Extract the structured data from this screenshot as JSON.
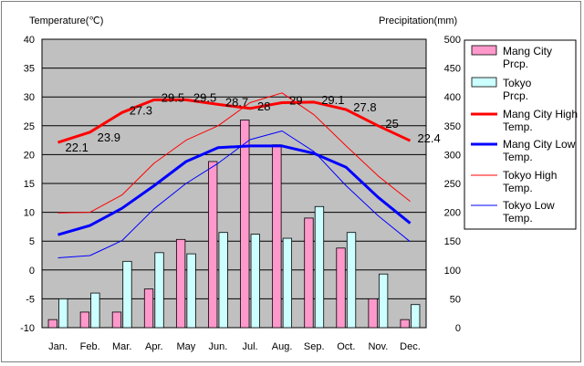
{
  "chart_data": {
    "type": "bar+line",
    "title": "",
    "ylabel_left": "Temperature(℃)",
    "ylabel_right": "Precipitation(mm)",
    "ylim_left": [
      -10,
      40
    ],
    "ylim_right": [
      0,
      500
    ],
    "yticks_left": [
      "40",
      "35",
      "30",
      "25",
      "20",
      "15",
      "10",
      "5",
      "0",
      "-5",
      "-10"
    ],
    "yticks_right": [
      "500",
      "450",
      "400",
      "350",
      "300",
      "250",
      "200",
      "150",
      "100",
      "50",
      "0"
    ],
    "categories": [
      "Jan.",
      "Feb.",
      "Mar.",
      "Apr.",
      "May",
      "Jun.",
      "Jul.",
      "Aug.",
      "Sep.",
      "Oct.",
      "Nov.",
      "Dec."
    ],
    "bar_series": [
      {
        "name": "Mang City Prcp.",
        "color": "#ff99cc",
        "axis": "right",
        "values": [
          14,
          27,
          27,
          67,
          153,
          288,
          360,
          317,
          190,
          138,
          50,
          14
        ]
      },
      {
        "name": "Tokyo Prcp.",
        "color": "#ccffff",
        "axis": "right",
        "values": [
          50,
          60,
          115,
          130,
          128,
          165,
          162,
          155,
          210,
          165,
          93,
          40
        ]
      }
    ],
    "line_series": [
      {
        "name": "Mang City High Temp.",
        "color": "#ff0000",
        "width": 3,
        "labeled": true,
        "values": [
          22.1,
          23.9,
          27.3,
          29.5,
          29.5,
          28.7,
          28,
          29,
          29.1,
          27.8,
          25,
          22.4
        ],
        "labels": [
          "22.1",
          "23.9",
          "27.3",
          "29.5",
          "29.5",
          "28.7",
          "28",
          "29",
          "29.1",
          "27.8",
          "25",
          "22.4"
        ]
      },
      {
        "name": "Mang City Low Temp.",
        "color": "#0000ff",
        "width": 3,
        "labeled": false,
        "values": [
          6.1,
          7.7,
          10.7,
          14.6,
          18.8,
          21.2,
          21.5,
          21.5,
          20.2,
          17.8,
          12.6,
          8.1
        ]
      },
      {
        "name": "Tokyo High Temp.",
        "color": "#ff0000",
        "width": 1,
        "labeled": false,
        "values": [
          9.9,
          10.0,
          13.0,
          18.5,
          22.5,
          25.0,
          29.0,
          30.7,
          26.9,
          21.5,
          16.3,
          11.9
        ]
      },
      {
        "name": "Tokyo Low Temp.",
        "color": "#0000ff",
        "width": 1,
        "labeled": false,
        "values": [
          2.1,
          2.5,
          5.1,
          10.6,
          15.0,
          18.5,
          22.6,
          24.1,
          20.5,
          14.6,
          9.4,
          4.9
        ]
      }
    ],
    "legend": [
      {
        "label": "Mang City Prcp.",
        "kind": "bar",
        "color": "#ff99cc"
      },
      {
        "label": "Tokyo Prcp.",
        "kind": "bar",
        "color": "#ccffff"
      },
      {
        "label": "Mang City High Temp.",
        "kind": "line",
        "color": "#ff0000",
        "width": 3
      },
      {
        "label": "Mang City Low Temp.",
        "kind": "line",
        "color": "#0000ff",
        "width": 3
      },
      {
        "label": "Tokyo High Temp.",
        "kind": "line",
        "color": "#ff0000",
        "width": 1
      },
      {
        "label": "Tokyo Low Temp.",
        "kind": "line",
        "color": "#0000ff",
        "width": 1
      }
    ],
    "legend_position": "right",
    "grid": true,
    "plot_background": "#c0c0c0"
  }
}
